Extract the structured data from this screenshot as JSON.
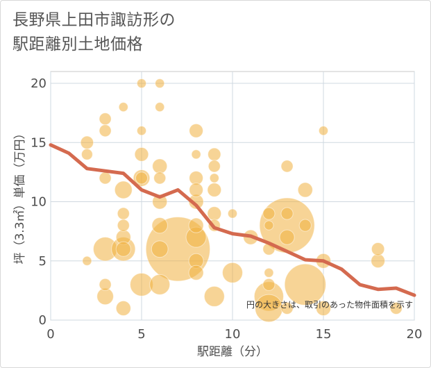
{
  "title": "長野県上田市諏訪形の\n駅距離別土地価格",
  "chart_data": {
    "type": "scatter",
    "title": "長野県上田市諏訪形の駅距離別土地価格",
    "xlabel": "駅距離（分）",
    "ylabel": "坪（3.3㎡）単価（万円）",
    "xlim": [
      0,
      20
    ],
    "ylim": [
      0,
      21
    ],
    "xticks": [
      0,
      5,
      10,
      15,
      20
    ],
    "yticks": [
      0,
      5,
      10,
      15,
      20
    ],
    "grid": true,
    "note": "円の大きさは、取引のあった物件面積を示す",
    "colors": {
      "bubble": "#f0b040",
      "line": "#d46a4f"
    },
    "scatter_points": [
      {
        "x": 2,
        "y": 15,
        "size": 1.4
      },
      {
        "x": 2,
        "y": 14,
        "size": 1.2
      },
      {
        "x": 2,
        "y": 5,
        "size": 1.0
      },
      {
        "x": 3,
        "y": 17,
        "size": 1.3
      },
      {
        "x": 3,
        "y": 16,
        "size": 1.3
      },
      {
        "x": 3,
        "y": 12,
        "size": 1.3
      },
      {
        "x": 3,
        "y": 6,
        "size": 2.6
      },
      {
        "x": 3,
        "y": 3,
        "size": 1.3
      },
      {
        "x": 3,
        "y": 2,
        "size": 1.8
      },
      {
        "x": 4,
        "y": 18,
        "size": 1.0
      },
      {
        "x": 4,
        "y": 11,
        "size": 1.9
      },
      {
        "x": 4,
        "y": 9,
        "size": 1.3
      },
      {
        "x": 4,
        "y": 8,
        "size": 1.3
      },
      {
        "x": 4,
        "y": 7,
        "size": 1.6
      },
      {
        "x": 4,
        "y": 6,
        "size": 2.6
      },
      {
        "x": 4,
        "y": 6,
        "size": 1.6
      },
      {
        "x": 4,
        "y": 1,
        "size": 1.6
      },
      {
        "x": 5,
        "y": 20,
        "size": 1.0
      },
      {
        "x": 5,
        "y": 16,
        "size": 1.0
      },
      {
        "x": 5,
        "y": 14,
        "size": 1.5
      },
      {
        "x": 5,
        "y": 12,
        "size": 1.8
      },
      {
        "x": 5,
        "y": 12,
        "size": 1.3
      },
      {
        "x": 5,
        "y": 3,
        "size": 2.5
      },
      {
        "x": 6,
        "y": 20,
        "size": 1.0
      },
      {
        "x": 6,
        "y": 18,
        "size": 1.0
      },
      {
        "x": 6,
        "y": 13,
        "size": 1.6
      },
      {
        "x": 6,
        "y": 12,
        "size": 1.3
      },
      {
        "x": 6,
        "y": 10,
        "size": 1.6
      },
      {
        "x": 6,
        "y": 8,
        "size": 1.7
      },
      {
        "x": 6,
        "y": 6,
        "size": 1.8
      },
      {
        "x": 6,
        "y": 3,
        "size": 2.2
      },
      {
        "x": 7,
        "y": 6,
        "size": 7.0
      },
      {
        "x": 8,
        "y": 16,
        "size": 1.5
      },
      {
        "x": 8,
        "y": 14,
        "size": 1.0
      },
      {
        "x": 8,
        "y": 12,
        "size": 1.5
      },
      {
        "x": 8,
        "y": 11,
        "size": 1.5
      },
      {
        "x": 8,
        "y": 10,
        "size": 1.6
      },
      {
        "x": 8,
        "y": 8,
        "size": 1.6
      },
      {
        "x": 8,
        "y": 7,
        "size": 2.2
      },
      {
        "x": 8,
        "y": 5,
        "size": 1.6
      },
      {
        "x": 8,
        "y": 4,
        "size": 1.6
      },
      {
        "x": 9,
        "y": 14,
        "size": 1.4
      },
      {
        "x": 9,
        "y": 13,
        "size": 1.3
      },
      {
        "x": 9,
        "y": 12,
        "size": 1.0
      },
      {
        "x": 9,
        "y": 11,
        "size": 1.5
      },
      {
        "x": 9,
        "y": 9,
        "size": 1.5
      },
      {
        "x": 9,
        "y": 8,
        "size": 1.3
      },
      {
        "x": 9,
        "y": 2,
        "size": 2.2
      },
      {
        "x": 10,
        "y": 9,
        "size": 1.0
      },
      {
        "x": 10,
        "y": 4,
        "size": 2.2
      },
      {
        "x": 11,
        "y": 7,
        "size": 1.6
      },
      {
        "x": 12,
        "y": 9,
        "size": 1.3
      },
      {
        "x": 12,
        "y": 8,
        "size": 1.0
      },
      {
        "x": 12,
        "y": 6,
        "size": 1.3
      },
      {
        "x": 12,
        "y": 4,
        "size": 1.0
      },
      {
        "x": 12,
        "y": 3,
        "size": 1.3
      },
      {
        "x": 12,
        "y": 2,
        "size": 3.2
      },
      {
        "x": 12,
        "y": 1,
        "size": 3.0
      },
      {
        "x": 13,
        "y": 13,
        "size": 1.3
      },
      {
        "x": 13,
        "y": 9,
        "size": 1.3
      },
      {
        "x": 13,
        "y": 8,
        "size": 6.0
      },
      {
        "x": 13,
        "y": 7,
        "size": 1.6
      },
      {
        "x": 13,
        "y": 1,
        "size": 1.3
      },
      {
        "x": 14,
        "y": 11,
        "size": 1.6
      },
      {
        "x": 14,
        "y": 8,
        "size": 1.3
      },
      {
        "x": 14,
        "y": 3,
        "size": 4.5
      },
      {
        "x": 15,
        "y": 16,
        "size": 1.0
      },
      {
        "x": 15,
        "y": 5,
        "size": 1.6
      },
      {
        "x": 15,
        "y": 1,
        "size": 1.6
      },
      {
        "x": 18,
        "y": 6,
        "size": 1.4
      },
      {
        "x": 18,
        "y": 5,
        "size": 1.5
      },
      {
        "x": 19,
        "y": 1,
        "size": 1.3
      }
    ],
    "trend_line": {
      "x": [
        0,
        1,
        2,
        3,
        4,
        5,
        6,
        7,
        8,
        9,
        10,
        11,
        12,
        13,
        14,
        15,
        16,
        17,
        18,
        19,
        20
      ],
      "y": [
        14.8,
        14.1,
        12.8,
        12.6,
        12.4,
        11.0,
        10.4,
        11.0,
        9.7,
        7.8,
        7.3,
        7.1,
        6.5,
        5.8,
        5.1,
        5.0,
        4.3,
        3.0,
        2.6,
        2.7,
        2.1
      ]
    }
  }
}
